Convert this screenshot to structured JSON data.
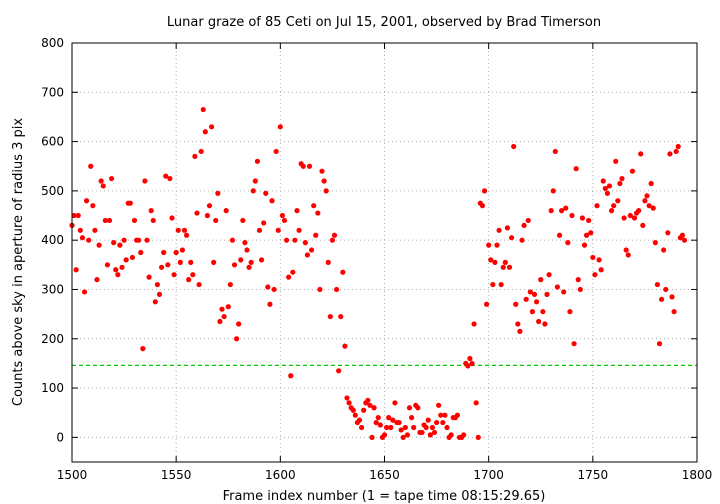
{
  "chart_data": {
    "type": "scatter",
    "title": "Lunar graze of 85 Ceti on Jul 15, 2001, observed by Brad Timerson",
    "xlabel": "Frame index number (1 = tape time 08:15:29.65)",
    "ylabel": "Counts above sky in aperture of radius 3 pix",
    "xlim": [
      1500,
      1800
    ],
    "ylim": [
      -50,
      800
    ],
    "xticks": [
      1500,
      1550,
      1600,
      1650,
      1700,
      1750,
      1800
    ],
    "yticks": [
      0,
      100,
      200,
      300,
      400,
      500,
      600,
      700,
      800
    ],
    "grid": true,
    "point_color": "#ff0000",
    "reference_line": {
      "y": 146,
      "color": "#00cc00",
      "style": "dashed"
    },
    "x_start": 1500,
    "x_step": 1,
    "y": [
      430,
      450,
      340,
      450,
      420,
      405,
      295,
      480,
      400,
      550,
      470,
      420,
      320,
      390,
      520,
      510,
      440,
      350,
      440,
      525,
      395,
      340,
      330,
      390,
      345,
      400,
      360,
      475,
      475,
      365,
      440,
      400,
      400,
      375,
      180,
      520,
      400,
      325,
      460,
      440,
      275,
      310,
      290,
      345,
      375,
      530,
      350,
      525,
      445,
      330,
      375,
      420,
      355,
      380,
      420,
      410,
      320,
      355,
      330,
      570,
      455,
      310,
      580,
      665,
      620,
      450,
      470,
      630,
      355,
      440,
      495,
      235,
      260,
      245,
      460,
      265,
      310,
      400,
      350,
      200,
      230,
      360,
      440,
      395,
      380,
      345,
      355,
      500,
      520,
      560,
      420,
      360,
      435,
      495,
      305,
      270,
      480,
      300,
      580,
      420,
      630,
      450,
      440,
      400,
      325,
      125,
      335,
      400,
      460,
      420,
      555,
      550,
      395,
      370,
      550,
      380,
      470,
      410,
      455,
      300,
      540,
      520,
      500,
      355,
      245,
      400,
      410,
      300,
      135,
      245,
      335,
      185,
      80,
      70,
      60,
      55,
      45,
      30,
      35,
      20,
      55,
      70,
      75,
      65,
      0,
      60,
      30,
      40,
      25,
      0,
      5,
      20,
      40,
      20,
      35,
      70,
      30,
      30,
      15,
      0,
      20,
      5,
      60,
      40,
      20,
      65,
      60,
      10,
      10,
      25,
      20,
      35,
      5,
      20,
      10,
      30,
      65,
      45,
      30,
      45,
      20,
      0,
      5,
      40,
      40,
      45,
      0,
      0,
      5,
      150,
      145,
      160,
      150,
      230,
      70,
      0,
      475,
      470,
      500,
      270,
      390,
      360,
      310,
      355,
      390,
      420,
      310,
      345,
      355,
      425,
      345,
      405,
      590,
      270,
      230,
      215,
      400,
      430,
      280,
      440,
      295,
      255,
      290,
      275,
      235,
      320,
      255,
      230,
      290,
      330,
      460,
      500,
      580,
      305,
      410,
      460,
      295,
      465,
      395,
      255,
      450,
      190,
      545,
      320,
      300,
      445,
      390,
      410,
      440,
      415,
      365,
      330,
      470,
      360,
      340,
      520,
      505,
      495,
      510,
      460,
      470,
      560,
      480,
      515,
      525,
      445,
      380,
      370,
      450,
      540,
      445,
      455,
      460,
      575,
      430,
      480,
      490,
      470,
      515,
      465,
      395,
      310,
      190,
      280,
      380,
      300,
      415,
      575,
      285,
      255,
      580,
      590,
      405,
      410,
      400
    ]
  }
}
